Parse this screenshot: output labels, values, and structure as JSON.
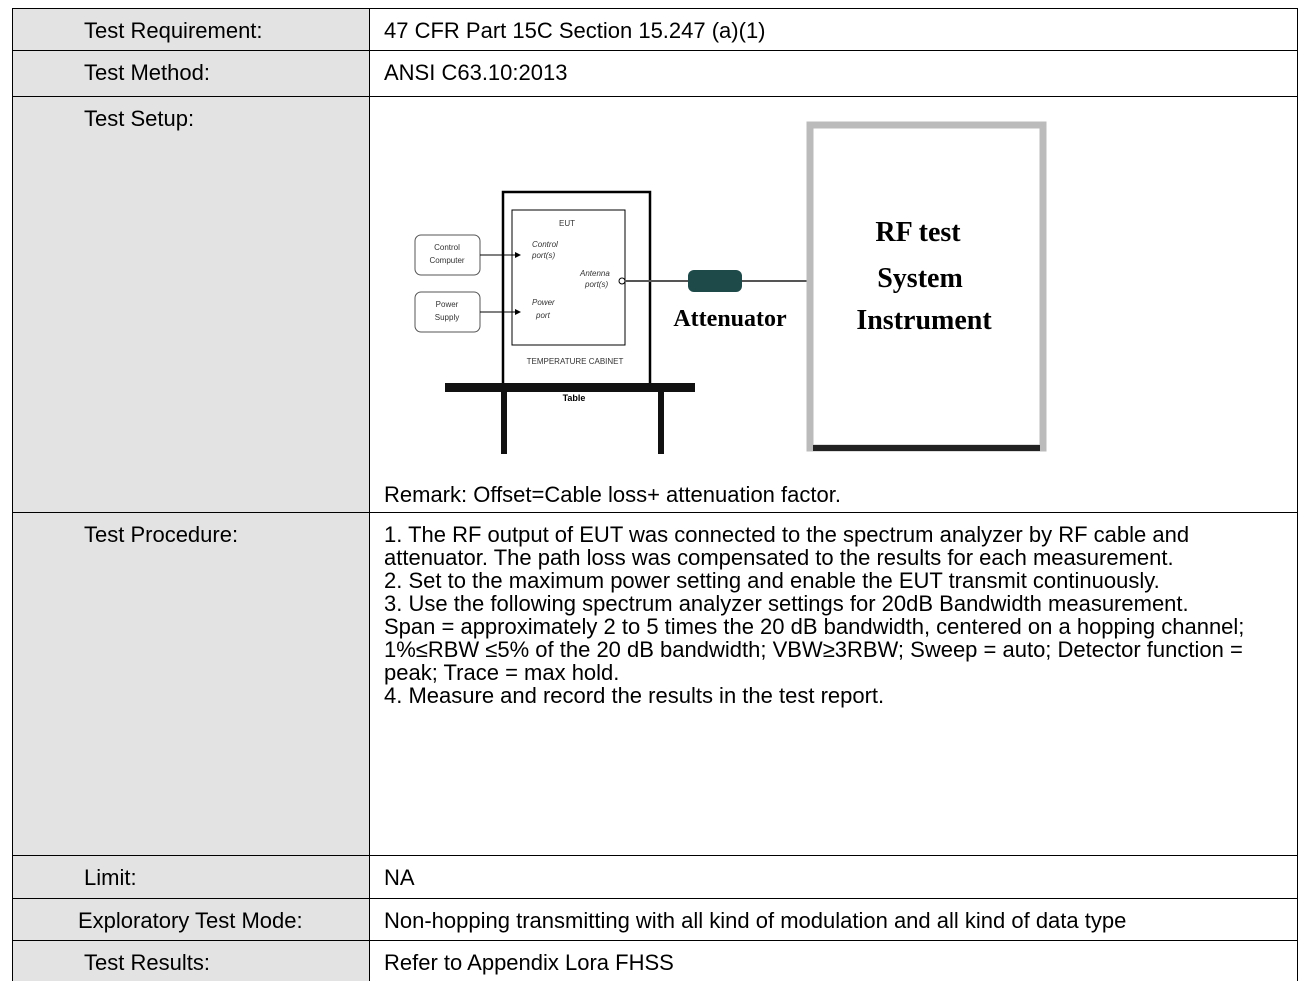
{
  "table": {
    "rows": [
      {
        "label": "Test Requirement:",
        "text": "47 CFR Part 15C Section 15.247 (a)(1)"
      },
      {
        "label": "Test Method:",
        "text": "ANSI C63.10:2013"
      },
      {
        "label": "Test Setup:",
        "text": "Remark: Offset=Cable loss+ attenuation factor."
      },
      {
        "label": "Test Procedure:",
        "paragraphs": [
          "1. The RF output of EUT was connected to the spectrum analyzer by RF cable and attenuator. The path loss was compensated to the results for each measurement.",
          "2. Set to the maximum power setting and enable the EUT transmit continuously.",
          "3. Use the following spectrum analyzer settings for 20dB Bandwidth measurement.",
          "Span = approximately 2 to 5 times the 20 dB bandwidth, centered on a hopping channel; 1%≤RBW ≤5% of the 20 dB bandwidth; VBW≥3RBW; Sweep = auto; Detector function = peak; Trace = max hold.",
          "4. Measure and record the results in the test report."
        ]
      },
      {
        "label": "Limit:",
        "text": "NA"
      },
      {
        "label": "Exploratory Test Mode:",
        "text": "Non-hopping transmitting with all kind of modulation and all kind of data type"
      },
      {
        "label": "Test Results:",
        "text": "Refer to Appendix Lora FHSS"
      }
    ]
  },
  "diagram": {
    "control_computer": [
      "Control",
      "Computer"
    ],
    "power_supply": [
      "Power",
      "Supply"
    ],
    "eut": "EUT",
    "control_port": [
      "Control",
      "port(s)"
    ],
    "antenna_port": [
      "Antenna",
      "port(s)"
    ],
    "power_port": [
      "Power",
      "port"
    ],
    "cabinet": "TEMPERATURE CABINET",
    "table": "Table",
    "attenuator": "Attenuator",
    "instrument": [
      "RF test",
      "System",
      "Instrument"
    ]
  }
}
